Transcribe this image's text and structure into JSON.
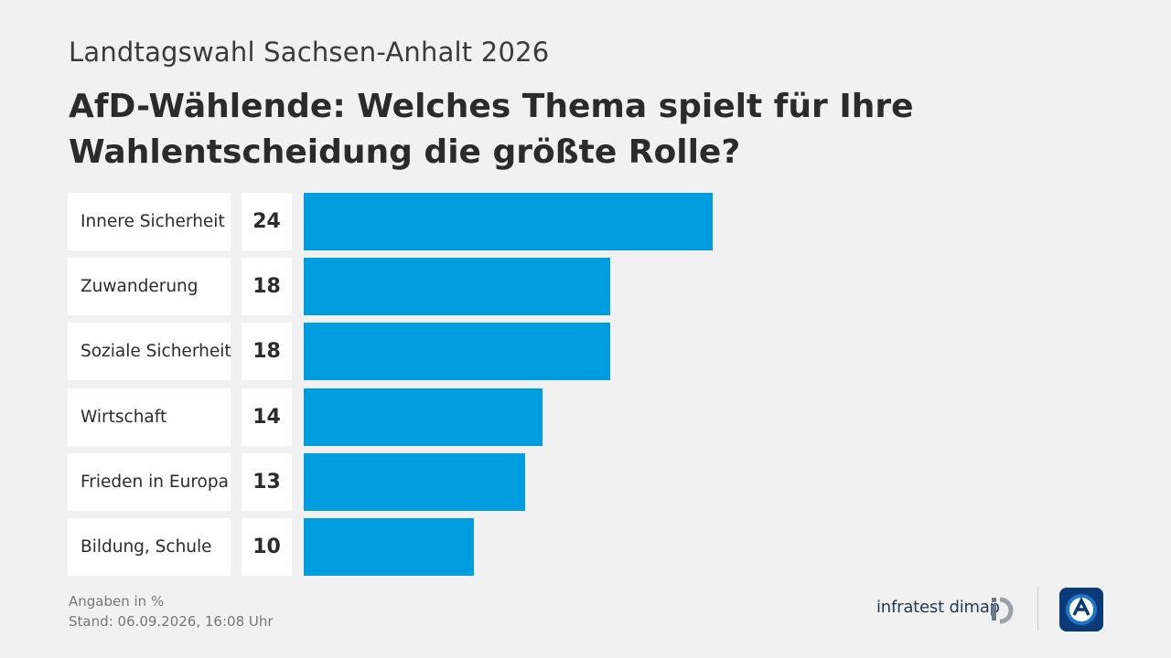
{
  "header": {
    "overline": "Landtagswahl Sachsen-Anhalt 2026",
    "title": "AfD-Wählende: Welches Thema spielt für Ihre Wahlentscheidung die größte Rolle?"
  },
  "chart_data": {
    "type": "bar",
    "orientation": "horizontal",
    "categories": [
      "Innere Sicherheit",
      "Zuwanderung",
      "Soziale Sicherheit",
      "Wirtschaft",
      "Frieden in Europa",
      "Bildung, Schule"
    ],
    "values": [
      24,
      18,
      18,
      14,
      13,
      10
    ],
    "value_labels": [
      "24",
      "18",
      "18",
      "14",
      "13",
      "10"
    ],
    "xlim": [
      0,
      24
    ],
    "bar_color": "#009ee0",
    "grid": false,
    "legend": "none"
  },
  "footer": {
    "unit_note": "Angaben in %",
    "stand_label": "Stand:",
    "stand_value": "06.09.2026, 16:08 Uhr"
  },
  "branding": {
    "institute": "infratest dimap",
    "institute_icon": "infratest-dimap-logo-icon",
    "broadcaster_icon": "tagesschau-logo-icon",
    "accent_color": "#009ee0",
    "logo_color": "#0a3b78"
  }
}
